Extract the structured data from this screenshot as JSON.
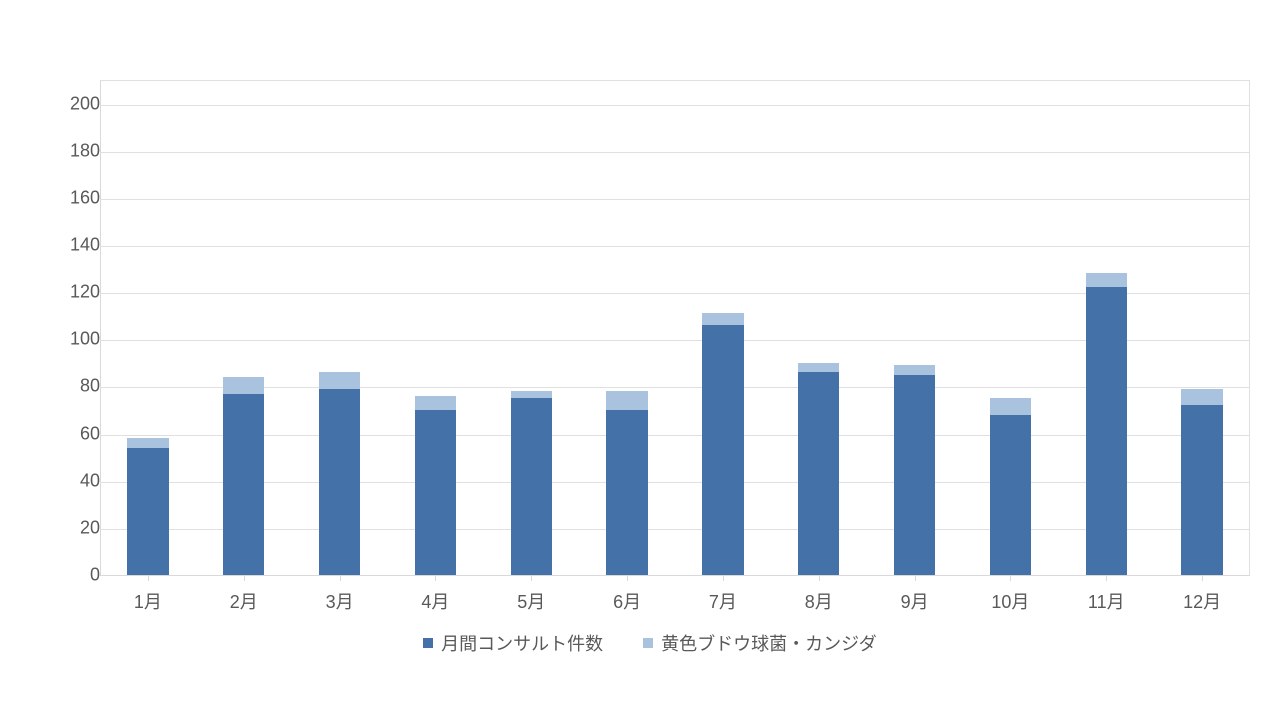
{
  "chart": {
    "type": "stacked-bar",
    "background_color": "#ffffff",
    "grid_color": "#e0e0e0",
    "axis_color": "#d9d9d9",
    "text_color": "#595959",
    "label_fontsize": 18,
    "ylim": [
      0,
      210
    ],
    "yticks": [
      0,
      20,
      40,
      60,
      80,
      100,
      120,
      140,
      160,
      180,
      200
    ],
    "categories": [
      "1月",
      "2月",
      "3月",
      "4月",
      "5月",
      "6月",
      "7月",
      "8月",
      "9月",
      "10月",
      "11月",
      "12月"
    ],
    "series": [
      {
        "name": "月間コンサルト件数",
        "color": "#4472a8",
        "values": [
          54,
          77,
          79,
          70,
          75,
          70,
          106,
          86,
          85,
          68,
          122,
          72
        ]
      },
      {
        "name": "黄色ブドウ球菌・カンジダ",
        "color": "#a9c3de",
        "values": [
          4,
          7,
          7,
          6,
          3,
          8,
          5,
          4,
          4,
          7,
          6,
          7
        ]
      }
    ],
    "bar_width_ratio": 0.43
  }
}
